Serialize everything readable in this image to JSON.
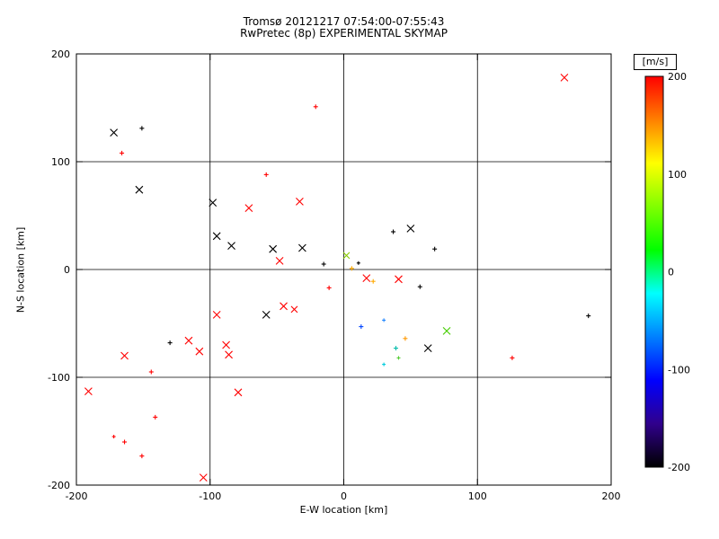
{
  "window_title": "EXPERIMENTAL SKYMAP",
  "chart_data": {
    "type": "scatter",
    "title": "Tromsø 20121217 07:54:00-07:55:43",
    "subtitle": "RwPretec (8p) EXPERIMENTAL SKYMAP",
    "xlabel": "E-W location [km]",
    "ylabel": "N-S location [km]",
    "xlim": [
      -200,
      200
    ],
    "ylim": [
      -200,
      200
    ],
    "xticks": [
      -200,
      -100,
      0,
      100,
      200
    ],
    "yticks": [
      -200,
      -100,
      0,
      100,
      200
    ],
    "grid": true,
    "legend_position": "none",
    "colorbar": {
      "label": "[m/s]",
      "min": -200,
      "max": 200,
      "ticks": [
        200,
        100,
        0,
        -100,
        -200
      ],
      "gradient_bottom_to_top": [
        "#000000",
        "#30008c",
        "#0000ff",
        "#0080ff",
        "#00ffff",
        "#00ff00",
        "#80ff00",
        "#ffff00",
        "#ff8000",
        "#ff0000"
      ]
    },
    "points": [
      {
        "x": 165,
        "y": 178,
        "m": "x",
        "c": "#ff0000",
        "s": 4
      },
      {
        "x": -166,
        "y": 108,
        "m": "+",
        "c": "#ff0000",
        "s": 2.5
      },
      {
        "x": -21,
        "y": 151,
        "m": "+",
        "c": "#ff0000",
        "s": 2.5
      },
      {
        "x": -58,
        "y": 88,
        "m": "+",
        "c": "#ff0000",
        "s": 2.5
      },
      {
        "x": -71,
        "y": 57,
        "m": "x",
        "c": "#ff0000",
        "s": 4
      },
      {
        "x": -33,
        "y": 63,
        "m": "x",
        "c": "#ff0000",
        "s": 4
      },
      {
        "x": -48,
        "y": 8,
        "m": "x",
        "c": "#ff0000",
        "s": 4
      },
      {
        "x": 17,
        "y": -8,
        "m": "x",
        "c": "#ff0000",
        "s": 4
      },
      {
        "x": 41,
        "y": -9,
        "m": "x",
        "c": "#ff0000",
        "s": 4
      },
      {
        "x": -11,
        "y": -17,
        "m": "+",
        "c": "#ff0000",
        "s": 2.5
      },
      {
        "x": -45,
        "y": -34,
        "m": "x",
        "c": "#ff0000",
        "s": 4
      },
      {
        "x": -37,
        "y": -37,
        "m": "x",
        "c": "#ff0000",
        "s": 3.5
      },
      {
        "x": -95,
        "y": -42,
        "m": "x",
        "c": "#ff0000",
        "s": 4
      },
      {
        "x": -116,
        "y": -66,
        "m": "x",
        "c": "#ff0000",
        "s": 4
      },
      {
        "x": -108,
        "y": -76,
        "m": "x",
        "c": "#ff0000",
        "s": 4
      },
      {
        "x": -88,
        "y": -70,
        "m": "x",
        "c": "#ff0000",
        "s": 4
      },
      {
        "x": -86,
        "y": -79,
        "m": "x",
        "c": "#ff0000",
        "s": 4
      },
      {
        "x": -164,
        "y": -80,
        "m": "x",
        "c": "#ff0000",
        "s": 4
      },
      {
        "x": -144,
        "y": -95,
        "m": "+",
        "c": "#ff0000",
        "s": 2.5
      },
      {
        "x": 126,
        "y": -82,
        "m": "+",
        "c": "#ff0000",
        "s": 2.5
      },
      {
        "x": -191,
        "y": -113,
        "m": "x",
        "c": "#ff0000",
        "s": 4
      },
      {
        "x": -79,
        "y": -114,
        "m": "x",
        "c": "#ff0000",
        "s": 4
      },
      {
        "x": -141,
        "y": -137,
        "m": "+",
        "c": "#ff0000",
        "s": 2.5
      },
      {
        "x": -172,
        "y": -155,
        "m": "+",
        "c": "#ff0000",
        "s": 2
      },
      {
        "x": -164,
        "y": -160,
        "m": "+",
        "c": "#ff0000",
        "s": 2.5
      },
      {
        "x": -151,
        "y": -173,
        "m": "+",
        "c": "#ff0000",
        "s": 2.5
      },
      {
        "x": -105,
        "y": -193,
        "m": "x",
        "c": "#ff0000",
        "s": 4
      },
      {
        "x": -172,
        "y": 127,
        "m": "x",
        "c": "#000000",
        "s": 4
      },
      {
        "x": -151,
        "y": 131,
        "m": "+",
        "c": "#000000",
        "s": 2.5
      },
      {
        "x": -153,
        "y": 74,
        "m": "x",
        "c": "#000000",
        "s": 4
      },
      {
        "x": -98,
        "y": 62,
        "m": "x",
        "c": "#000000",
        "s": 4
      },
      {
        "x": -95,
        "y": 31,
        "m": "x",
        "c": "#000000",
        "s": 4
      },
      {
        "x": -84,
        "y": 22,
        "m": "x",
        "c": "#000000",
        "s": 4
      },
      {
        "x": -53,
        "y": 19,
        "m": "x",
        "c": "#000000",
        "s": 4
      },
      {
        "x": -31,
        "y": 20,
        "m": "x",
        "c": "#000000",
        "s": 4
      },
      {
        "x": -15,
        "y": 5,
        "m": "+",
        "c": "#000000",
        "s": 2.5
      },
      {
        "x": 37,
        "y": 35,
        "m": "+",
        "c": "#000000",
        "s": 2.5
      },
      {
        "x": 50,
        "y": 38,
        "m": "x",
        "c": "#000000",
        "s": 4
      },
      {
        "x": 68,
        "y": 19,
        "m": "+",
        "c": "#000000",
        "s": 2.5
      },
      {
        "x": 11,
        "y": 6,
        "m": "+",
        "c": "#000000",
        "s": 2
      },
      {
        "x": 57,
        "y": -16,
        "m": "+",
        "c": "#000000",
        "s": 2.5
      },
      {
        "x": -58,
        "y": -42,
        "m": "x",
        "c": "#000000",
        "s": 4
      },
      {
        "x": 63,
        "y": -73,
        "m": "x",
        "c": "#000000",
        "s": 4
      },
      {
        "x": -130,
        "y": -68,
        "m": "+",
        "c": "#000000",
        "s": 2.5
      },
      {
        "x": 183,
        "y": -43,
        "m": "+",
        "c": "#000000",
        "s": 2.5
      },
      {
        "x": 2,
        "y": 13,
        "m": "x",
        "c": "#88cc00",
        "s": 3.5
      },
      {
        "x": 6,
        "y": 1,
        "m": "+",
        "c": "#ffaa00",
        "s": 2.5
      },
      {
        "x": 22,
        "y": -11,
        "m": "+",
        "c": "#ffaa00",
        "s": 2.5
      },
      {
        "x": 13,
        "y": -53,
        "m": "+",
        "c": "#0044ff",
        "s": 2.5
      },
      {
        "x": 30,
        "y": -47,
        "m": "+",
        "c": "#2288ff",
        "s": 2
      },
      {
        "x": 77,
        "y": -57,
        "m": "x",
        "c": "#44cc00",
        "s": 4
      },
      {
        "x": 46,
        "y": -64,
        "m": "+",
        "c": "#ff9900",
        "s": 2.5
      },
      {
        "x": 39,
        "y": -73,
        "m": "+",
        "c": "#00bbaa",
        "s": 2.5
      },
      {
        "x": 41,
        "y": -82,
        "m": "+",
        "c": "#55cc33",
        "s": 2
      },
      {
        "x": 30,
        "y": -88,
        "m": "+",
        "c": "#00ccdd",
        "s": 2
      }
    ]
  }
}
